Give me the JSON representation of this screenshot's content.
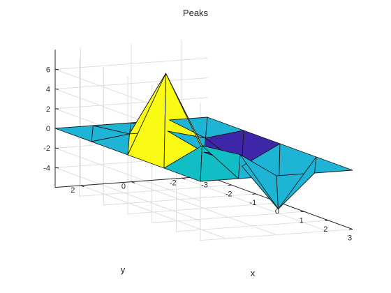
{
  "chart_data": {
    "type": "surface",
    "title": "Peaks",
    "xlabel": "x",
    "ylabel": "y",
    "zlabel": "",
    "x": [
      -3,
      -1.5,
      0,
      1.5,
      3
    ],
    "y": [
      -3,
      -1.5,
      0,
      1.5,
      3
    ],
    "z": [
      [
        0.0,
        0.0,
        0.0,
        0.0,
        0.0
      ],
      [
        0.0,
        -0.5,
        -2.0,
        -5.0,
        0.0
      ],
      [
        0.0,
        0.5,
        -0.3,
        0.8,
        0.0
      ],
      [
        0.0,
        0.5,
        8.0,
        2.0,
        0.0
      ],
      [
        0.0,
        0.0,
        0.0,
        0.0,
        0.0
      ]
    ],
    "xlim": [
      -3,
      3
    ],
    "ylim": [
      -3,
      3
    ],
    "zlim": [
      -6,
      8
    ],
    "xticks": [
      "-3",
      "-2",
      "-1",
      "0",
      "1",
      "2",
      "3"
    ],
    "yticks": [
      "-2",
      "0",
      "2"
    ],
    "zticks": [
      "-4",
      "-2",
      "0",
      "2",
      "4",
      "6"
    ],
    "grid": true,
    "colormap": "parula",
    "colors": {
      "parula_dark": "#3e26a8",
      "parula_blue": "#4a6ff5",
      "parula_cyan": "#1eb4d6",
      "parula_teal": "#12bec6",
      "parula_yellow": "#f9fb15"
    }
  }
}
